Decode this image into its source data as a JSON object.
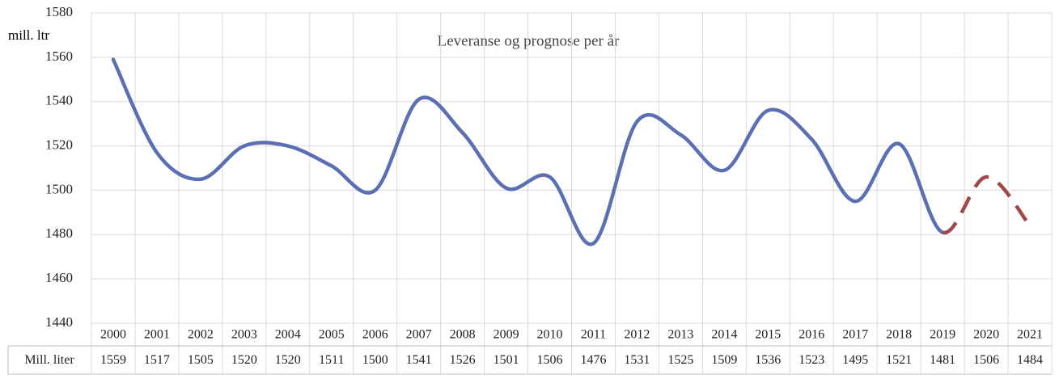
{
  "chart_data": {
    "type": "line",
    "title": "Leveranse og prognose per år",
    "y_label": "mill. ltr",
    "categories": [
      "2000",
      "2001",
      "2002",
      "2003",
      "2004",
      "2005",
      "2006",
      "2007",
      "2008",
      "2009",
      "2010",
      "2011",
      "2012",
      "2013",
      "2014",
      "2015",
      "2016",
      "2017",
      "2018",
      "2019",
      "2020",
      "2021"
    ],
    "series": [
      {
        "name": "Mill. liter",
        "color": "#5b70b3",
        "values": [
          1559,
          1517,
          1505,
          1520,
          1520,
          1511,
          1500,
          1541,
          1526,
          1501,
          1506,
          1476,
          1531,
          1525,
          1509,
          1536,
          1523,
          1495,
          1521,
          1481,
          1506,
          1484
        ]
      }
    ],
    "forecast_start": "2019",
    "forecast_color": "#a04848",
    "ylim": [
      1440,
      1580
    ],
    "yticks": [
      1440,
      1460,
      1480,
      1500,
      1520,
      1540,
      1560,
      1580
    ],
    "grid": true,
    "smooth": true
  }
}
